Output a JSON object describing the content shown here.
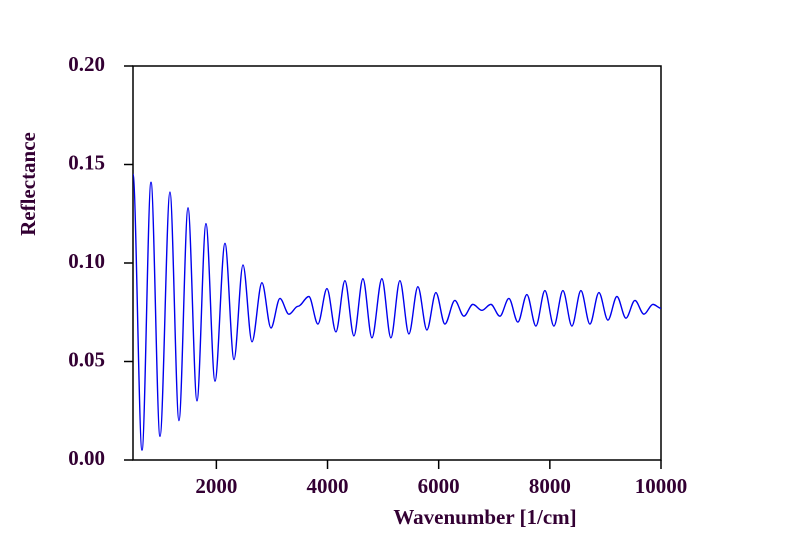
{
  "chart_data": {
    "type": "line",
    "xlabel": "Wavenumber [1/cm]",
    "ylabel": "Reflectance",
    "x": [
      500,
      662,
      824,
      986,
      1165,
      1327,
      1490,
      1651,
      1813,
      1975,
      2155,
      2317,
      2479,
      2641,
      2820,
      2982,
      3144,
      3306,
      3468,
      3665,
      3827,
      3990,
      4151,
      4313,
      4475,
      4637,
      4799,
      4978,
      5140,
      5302,
      5464,
      5626,
      5788,
      5950,
      6112,
      6291,
      6453,
      6615,
      6777,
      6939,
      7101,
      7263,
      7425,
      7587,
      7749,
      7911,
      8073,
      8235,
      8397,
      8559,
      8721,
      8883,
      9045,
      9207,
      9369,
      9531,
      9693,
      9855,
      10000
    ],
    "series": [
      {
        "color": "#0000ee",
        "values": [
          0.145,
          0.005,
          0.141,
          0.012,
          0.136,
          0.02,
          0.128,
          0.03,
          0.12,
          0.04,
          0.11,
          0.051,
          0.099,
          0.06,
          0.09,
          0.067,
          0.082,
          0.074,
          0.078,
          0.083,
          0.069,
          0.087,
          0.065,
          0.091,
          0.063,
          0.092,
          0.062,
          0.092,
          0.062,
          0.091,
          0.064,
          0.088,
          0.066,
          0.085,
          0.069,
          0.081,
          0.073,
          0.079,
          0.076,
          0.079,
          0.073,
          0.082,
          0.07,
          0.084,
          0.068,
          0.086,
          0.068,
          0.086,
          0.068,
          0.086,
          0.069,
          0.085,
          0.071,
          0.083,
          0.072,
          0.081,
          0.074,
          0.079,
          0.077
        ]
      }
    ],
    "xlim": [
      500,
      10000
    ],
    "xticks": [
      2000,
      4000,
      6000,
      8000,
      10000
    ],
    "ylim": [
      0,
      0.2
    ],
    "yticks": [
      {
        "value": 0,
        "label": "0.00"
      },
      {
        "value": 0.05,
        "label": "0.05"
      },
      {
        "value": 0.1,
        "label": "0.10"
      },
      {
        "value": 0.15,
        "label": "0.15"
      },
      {
        "value": 0.2,
        "label": "0.20"
      }
    ]
  }
}
